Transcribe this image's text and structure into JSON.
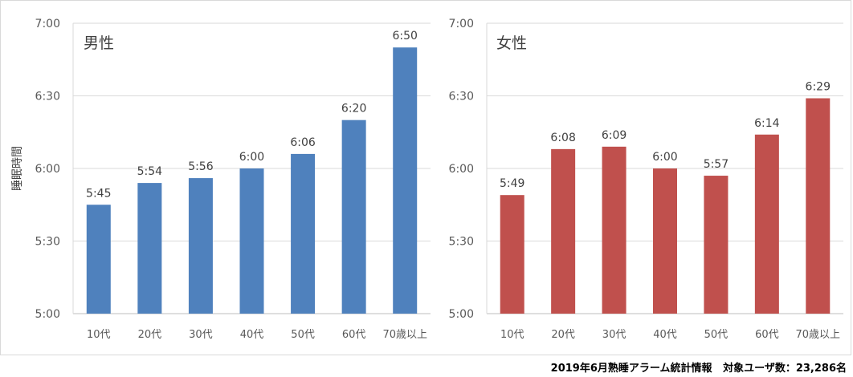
{
  "footer": {
    "source": "2019年6月熟睡アラーム統計情報",
    "users": "対象ユーザ数：23,286名"
  },
  "chart_data": [
    {
      "type": "bar",
      "title": "男性",
      "ylabel": "睡眠時間",
      "xlabel": "",
      "ylim": [
        "5:00",
        "7:00"
      ],
      "yticks": [
        "5:00",
        "5:30",
        "6:00",
        "6:30",
        "7:00"
      ],
      "categories": [
        "10代",
        "20代",
        "30代",
        "40代",
        "50代",
        "60代",
        "70歳以上"
      ],
      "values": [
        "5:45",
        "5:54",
        "5:56",
        "6:00",
        "6:06",
        "6:20",
        "6:50"
      ],
      "color": "#4f81bd",
      "grid": true
    },
    {
      "type": "bar",
      "title": "女性",
      "ylabel": "",
      "xlabel": "",
      "ylim": [
        "5:00",
        "7:00"
      ],
      "yticks": [
        "5:00",
        "5:30",
        "6:00",
        "6:30",
        "7:00"
      ],
      "categories": [
        "10代",
        "20代",
        "30代",
        "40代",
        "50代",
        "60代",
        "70歳以上"
      ],
      "values": [
        "5:49",
        "6:08",
        "6:09",
        "6:00",
        "5:57",
        "6:14",
        "6:29"
      ],
      "color": "#c0504d",
      "grid": true
    }
  ]
}
